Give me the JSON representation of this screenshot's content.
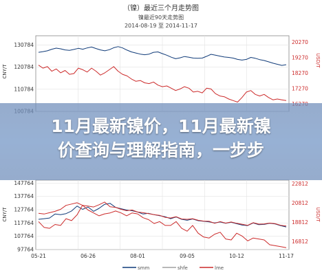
{
  "headline": {
    "line1": "11月最新镍价，11月最新镍",
    "line2": "价查询与理解指南，一步步"
  },
  "colors": {
    "series_primary": "#0f3a78",
    "series_secondary": "#cc2a2a",
    "series_tertiary": "#a0a0a0"
  },
  "chart_data": [
    {
      "type": "line",
      "title": "（镍）最近三个月走势图",
      "subtitle_line1": "镍最近90天走势图",
      "subtitle_line2": "2014-08-19 至 2014-11-17",
      "ylabel_left": "CNY/T",
      "ylabel_right": "USD/T",
      "yticks_left": [
        "130784",
        "120784",
        "110784",
        "100784"
      ],
      "yticks_right": [
        "20270",
        "19270",
        "18270",
        "17270",
        "16270"
      ],
      "ylim_left": [
        100784,
        135000
      ],
      "ylim_right": [
        15800,
        20700
      ],
      "grid": true,
      "series": [
        {
          "axis": "left",
          "values": [
            127500,
            127800,
            128200,
            128900,
            129400,
            129100,
            128600,
            128400,
            128800,
            129300,
            128900,
            129500,
            129900,
            129200,
            128600,
            128200,
            128700,
            129600,
            130100,
            129500,
            128500,
            127700,
            127200,
            126700,
            126400,
            126700,
            127500,
            127700,
            126900,
            126200,
            125300,
            124600,
            125000,
            125600,
            125300,
            124900,
            124800,
            124900,
            125700,
            126600,
            126200,
            125800,
            125400,
            125200,
            124900,
            124300,
            124000,
            124300,
            125200,
            124800,
            124200,
            123800,
            123200,
            122600,
            122100,
            121600,
            121900
          ]
        },
        {
          "axis": "right",
          "values": [
            18800,
            18600,
            18700,
            18400,
            18550,
            18300,
            18450,
            18200,
            18250,
            18600,
            18500,
            18350,
            18600,
            18400,
            18150,
            18300,
            18500,
            18700,
            18400,
            18200,
            18100,
            17900,
            17750,
            17800,
            17650,
            17600,
            17700,
            17500,
            17400,
            17450,
            17300,
            17150,
            17250,
            17400,
            17300,
            17050,
            17100,
            17000,
            17300,
            17250,
            16950,
            16800,
            16750,
            16600,
            16500,
            16400,
            16700,
            17050,
            17150,
            16900,
            16800,
            16900,
            16700,
            16550,
            16600,
            16550,
            16500
          ]
        }
      ]
    },
    {
      "type": "line",
      "ylabel_left": "CNY/T",
      "ylabel_right": "USD/T",
      "yticks_left": [
        "147764",
        "137764",
        "127764",
        "117764",
        "107764",
        "97764"
      ],
      "yticks_right": [
        "22812",
        "20812",
        "18812",
        "16812"
      ],
      "ylim_left": [
        97764,
        150000
      ],
      "ylim_right": [
        16000,
        23200
      ],
      "xticks": [
        "05-21",
        "06-26",
        "08-01",
        "09-05",
        "10-12",
        "11-17"
      ],
      "grid": true,
      "legend": [
        "smm",
        "shfe",
        "lme"
      ],
      "legend_position": "bottom",
      "series": [
        {
          "name": "smm",
          "axis": "left",
          "values": [
            120500,
            121000,
            121500,
            124500,
            124000,
            124800,
            126800,
            130500,
            128000,
            129800,
            126500,
            128800,
            131800,
            132500,
            129500,
            128500,
            127500,
            127000,
            126000,
            124500,
            125000,
            124000,
            123200,
            122500,
            121000,
            122300,
            120500,
            119800,
            120800,
            119500,
            119000,
            118600,
            117800,
            118500,
            117500,
            118300,
            117200,
            116200,
            115800,
            117800,
            116500,
            116700,
            117500,
            117000,
            115700,
            114800
          ]
        },
        {
          "name": "shfe",
          "axis": "left",
          "values": [
            125000,
            124500,
            125500,
            126500,
            128000,
            131000,
            132000,
            133000,
            131000,
            130500,
            129800,
            131500,
            133500,
            130000,
            129500,
            128000,
            127000,
            127500,
            126000,
            125500,
            124800,
            124000,
            123500,
            122000,
            121500,
            122500,
            120800,
            120500,
            121000,
            119800,
            119200,
            119000,
            117500,
            118800,
            117700,
            118500,
            117500,
            116800,
            116000,
            118000,
            116900,
            117000,
            117700,
            117200,
            116000,
            115500
          ]
        },
        {
          "name": "lme",
          "axis": "right",
          "values": [
            18900,
            18300,
            18200,
            18600,
            18500,
            19200,
            19000,
            19600,
            20600,
            20100,
            19800,
            19500,
            19700,
            19800,
            20000,
            19800,
            19500,
            19800,
            19700,
            19300,
            19100,
            18700,
            18900,
            18500,
            18500,
            18900,
            18200,
            17900,
            18500,
            17700,
            17300,
            17200,
            17600,
            17800,
            17100,
            17000,
            17700,
            17400,
            16900,
            17200,
            17100,
            17000,
            16500,
            16400,
            16300,
            16200
          ]
        }
      ]
    }
  ]
}
